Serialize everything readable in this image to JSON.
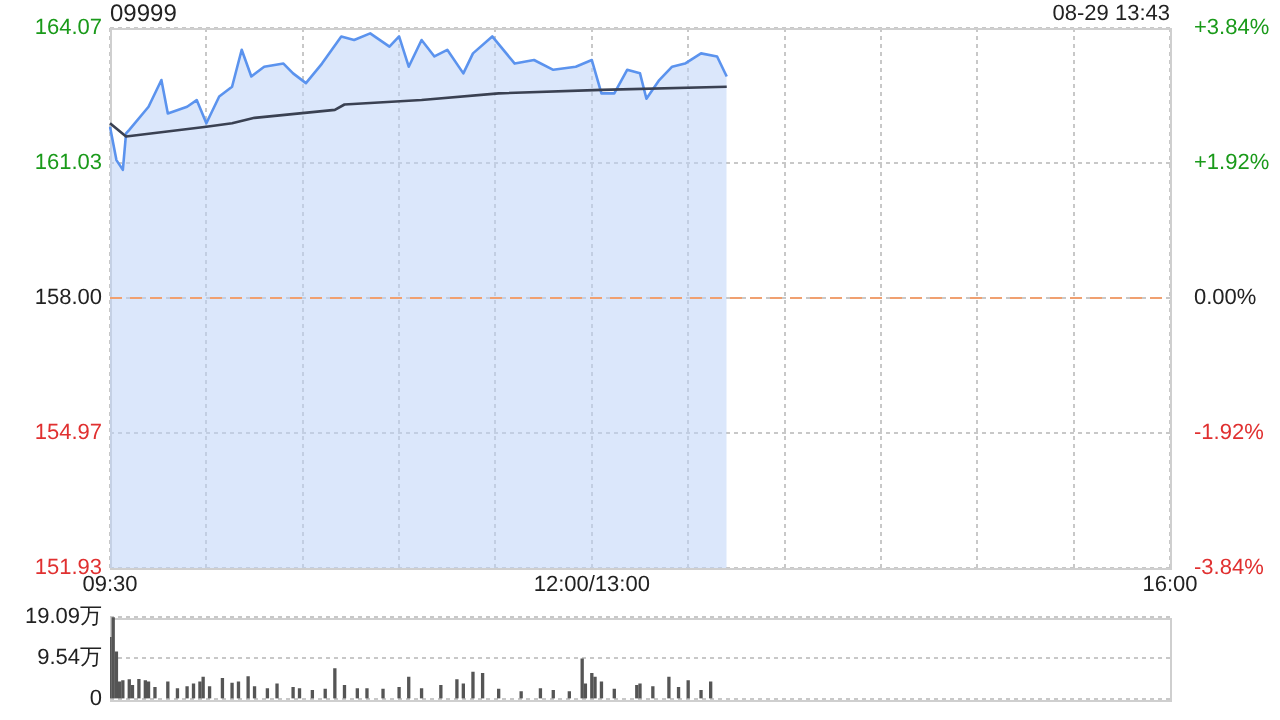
{
  "chart_data": [
    {
      "type": "line",
      "title": "09999",
      "annotations": [
        "08-29 13:43"
      ],
      "categories": [
        "09:30",
        null,
        null,
        null,
        null,
        null,
        null,
        null,
        null,
        null,
        null,
        null,
        null,
        null,
        null,
        null,
        null,
        null,
        null,
        null,
        null,
        null,
        null,
        null,
        null,
        null,
        null,
        null,
        null,
        null,
        null,
        null,
        null,
        null,
        null,
        null,
        null,
        null,
        null,
        null,
        null,
        null,
        null,
        null,
        null,
        null,
        null,
        null,
        null,
        null,
        null,
        null,
        null,
        null,
        null,
        null,
        null,
        null,
        null,
        null,
        null,
        null,
        null,
        null,
        null,
        null,
        null,
        null,
        null,
        null,
        null,
        null,
        null,
        null,
        null,
        null,
        null,
        null,
        null,
        null,
        null,
        null,
        null,
        null,
        null,
        null,
        null,
        null,
        null,
        null,
        null,
        null,
        null,
        null,
        null,
        null,
        null,
        null,
        null,
        null,
        null,
        null,
        null,
        null,
        null,
        null,
        null,
        null,
        null,
        null,
        null,
        null,
        null,
        null,
        null,
        null,
        null,
        null,
        null,
        null,
        null,
        null,
        null,
        null,
        null,
        null,
        null,
        null,
        null,
        null,
        null,
        null,
        null,
        null,
        null,
        null,
        null,
        null,
        null,
        null,
        null,
        null,
        null,
        null,
        null,
        null,
        null,
        null,
        null,
        null,
        "12:00/13:00",
        null,
        null,
        null,
        null,
        null,
        null,
        null,
        null,
        null,
        null,
        null,
        null,
        null,
        null,
        null,
        null,
        null,
        null,
        null,
        null,
        null,
        null,
        null,
        null,
        null,
        null,
        null,
        null,
        null,
        null,
        null,
        null,
        null,
        null,
        null,
        null,
        null,
        null,
        null,
        null,
        null,
        null,
        null,
        null,
        null,
        null,
        null,
        null,
        null,
        null,
        null,
        null,
        null,
        null,
        null,
        null,
        null,
        null,
        null,
        null,
        null,
        null,
        null,
        null,
        null,
        null,
        null,
        null,
        null,
        null,
        null,
        null,
        null,
        null,
        null,
        null,
        null,
        null,
        null,
        null,
        null,
        null,
        null,
        null,
        null,
        null,
        null,
        null,
        null,
        null,
        null,
        null,
        null,
        null,
        null,
        null,
        null,
        null,
        null,
        null,
        null,
        null,
        null,
        null,
        null,
        null,
        null,
        null,
        null,
        null,
        null,
        null,
        null,
        null,
        null,
        null,
        null,
        null,
        null,
        null,
        null,
        null,
        null,
        null,
        null,
        null,
        null,
        null,
        null,
        null,
        null,
        null,
        null,
        null,
        null,
        null,
        null,
        null,
        null,
        null,
        null,
        null,
        null,
        null,
        null,
        null,
        null,
        null,
        null,
        null,
        null,
        null,
        null,
        null,
        null,
        null,
        null,
        null,
        null,
        null,
        null,
        null,
        null,
        null,
        null,
        null,
        null,
        null,
        null,
        null,
        null,
        null,
        null,
        null,
        null,
        null,
        null,
        null,
        null,
        "16:00"
      ],
      "series": [
        {
          "type": "area",
          "color": "#5b93ee",
          "values": [
            161.85,
            null,
            161.1,
            null,
            160.88,
            161.7,
            161.78,
            null,
            null,
            null,
            null,
            null,
            162.3,
            null,
            null,
            null,
            162.9,
            null,
            162.15,
            null,
            null,
            null,
            null,
            null,
            162.3,
            null,
            null,
            162.45,
            null,
            null,
            161.93,
            null,
            null,
            null,
            162.53,
            null,
            null,
            null,
            162.75,
            null,
            null,
            163.58,
            null,
            null,
            162.98,
            null,
            null,
            null,
            163.2,
            null,
            null,
            null,
            null,
            null,
            163.27,
            null,
            null,
            163.05,
            null,
            null,
            null,
            162.83,
            null,
            null,
            null,
            null,
            163.27,
            null,
            null,
            null,
            null,
            null,
            163.88,
            null,
            null,
            null,
            163.8,
            null,
            null,
            null,
            null,
            163.95,
            null,
            null,
            null,
            null,
            null,
            163.65,
            null,
            null,
            163.88,
            null,
            null,
            163.2,
            null,
            null,
            null,
            163.8,
            null,
            null,
            null,
            163.43,
            null,
            null,
            null,
            163.58,
            null,
            null,
            null,
            null,
            163.05,
            null,
            null,
            163.5,
            null,
            null,
            null,
            null,
            null,
            163.88,
            null,
            null,
            null,
            null,
            null,
            null,
            163.27,
            null,
            null,
            null,
            null,
            null,
            163.35,
            null,
            null,
            null,
            null,
            null,
            163.13,
            null,
            null,
            null,
            null,
            null,
            null,
            163.2,
            null,
            null,
            null,
            null,
            163.35,
            null,
            null,
            162.6,
            null,
            null,
            null,
            162.6,
            null,
            null,
            null,
            163.13,
            null,
            null,
            null,
            163.05,
            null,
            162.48,
            null,
            null,
            null,
            162.9,
            null,
            null,
            null,
            163.2,
            null,
            null,
            null,
            163.27,
            null,
            null,
            null,
            null,
            163.5,
            null,
            null,
            null,
            null,
            163.43,
            null,
            null,
            162.98,
            null,
            null,
            null,
            null,
            null,
            null,
            null,
            null,
            null,
            null,
            null,
            null,
            null,
            null,
            null,
            null,
            null,
            null,
            null,
            null,
            null,
            null,
            null,
            null,
            null,
            null,
            null,
            null,
            null,
            null,
            null,
            null,
            null,
            null,
            null,
            null,
            null,
            null,
            null,
            null,
            null,
            null,
            null,
            null,
            null,
            null,
            null,
            null,
            null,
            null,
            null,
            null,
            null,
            null,
            null,
            null,
            null,
            null,
            null,
            null,
            null,
            null,
            null,
            null,
            null,
            null,
            null,
            null,
            null,
            null,
            null,
            null,
            null,
            null,
            null,
            null,
            null,
            null,
            null,
            null,
            null,
            null,
            null,
            null,
            null,
            null,
            null,
            null,
            null,
            null,
            null,
            null,
            null,
            null,
            null,
            null,
            null,
            null,
            null,
            null,
            null,
            null,
            null,
            null,
            null,
            null,
            null,
            null,
            null,
            null,
            null,
            null,
            null,
            null,
            null,
            null,
            null,
            null,
            null,
            null,
            null,
            null,
            null,
            null,
            null,
            null,
            null,
            null,
            null,
            null,
            null,
            null,
            null,
            null,
            null,
            null,
            null,
            null
          ]
        },
        {
          "type": "line",
          "color": "#3a4152",
          "values": [
            161.93,
            null,
            null,
            null,
            null,
            161.63,
            null,
            null,
            null,
            null,
            null,
            null,
            null,
            null,
            null,
            null,
            null,
            null,
            null,
            null,
            null,
            null,
            null,
            null,
            null,
            null,
            null,
            null,
            null,
            null,
            161.85,
            null,
            null,
            null,
            null,
            null,
            null,
            null,
            161.93,
            null,
            null,
            null,
            null,
            null,
            null,
            162.05,
            null,
            null,
            null,
            null,
            null,
            null,
            null,
            null,
            null,
            null,
            null,
            null,
            null,
            null,
            null,
            null,
            null,
            null,
            null,
            null,
            null,
            null,
            null,
            null,
            162.23,
            null,
            null,
            162.35,
            null,
            null,
            null,
            null,
            null,
            null,
            null,
            null,
            null,
            null,
            null,
            null,
            null,
            null,
            null,
            null,
            null,
            null,
            null,
            null,
            null,
            null,
            null,
            162.45,
            null,
            null,
            null,
            null,
            null,
            null,
            null,
            null,
            null,
            null,
            null,
            null,
            null,
            null,
            null,
            null,
            null,
            null,
            null,
            null,
            null,
            null,
            null,
            162.6,
            null,
            null,
            null,
            null,
            null,
            null,
            null,
            null,
            null,
            null,
            null,
            null,
            null,
            null,
            null,
            null,
            null,
            null,
            null,
            null,
            null,
            null,
            null,
            null,
            null,
            null,
            null,
            null,
            null,
            null,
            null,
            162.68,
            null,
            null,
            null,
            null,
            null,
            null,
            null,
            null,
            null,
            null,
            null,
            null,
            null,
            null,
            null,
            null,
            null,
            null,
            null,
            null,
            null,
            null,
            null,
            null,
            null,
            null,
            null,
            null,
            null,
            null,
            null,
            null,
            null,
            null,
            null,
            null,
            null,
            null,
            162.75,
            null,
            null,
            null,
            null,
            null,
            null,
            null,
            null,
            null,
            null,
            null,
            null,
            null,
            null,
            null,
            null,
            null,
            null,
            null,
            null,
            null,
            null,
            null,
            null,
            null,
            null,
            null,
            null,
            null,
            null,
            null,
            null,
            null,
            null,
            null,
            null,
            null,
            null,
            null,
            null,
            null,
            null,
            null,
            null,
            null,
            null,
            null,
            null,
            null,
            null,
            null,
            null,
            null,
            null,
            null,
            null,
            null,
            null,
            null,
            null,
            null,
            null,
            null,
            null,
            null,
            null,
            null,
            null,
            null,
            null,
            null,
            null,
            null,
            null,
            null,
            null,
            null,
            null,
            null,
            null,
            null,
            null,
            null,
            null,
            null,
            null,
            null,
            null,
            null,
            null,
            null,
            null,
            null,
            null,
            null,
            null,
            null,
            null,
            null,
            null,
            null,
            null,
            null,
            null,
            null,
            null,
            null,
            null,
            null,
            null,
            null,
            null,
            null,
            null,
            null,
            null,
            null,
            null,
            null,
            null,
            null,
            null,
            null,
            null,
            null,
            null,
            null,
            null,
            null,
            null,
            null,
            null,
            null,
            null,
            null,
            null,
            null,
            null
          ]
        }
      ],
      "ylim": [
        151.93,
        164.07
      ],
      "yticks": [
        {
          "value": 151.93,
          "label": "151.93"
        },
        {
          "value": 154.97,
          "label": "154.97"
        },
        {
          "value": 158,
          "label": "158.00"
        },
        {
          "value": 161.03,
          "label": "161.03"
        },
        {
          "value": 164.07,
          "label": "164.07"
        }
      ],
      "y2lim": [
        -3.84,
        3.84
      ],
      "y2ticks": [
        {
          "value": -3.84,
          "label": "-3.84%"
        },
        {
          "value": -1.92,
          "label": "-1.92%"
        },
        {
          "value": 0,
          "label": "0.00%"
        },
        {
          "value": 1.92,
          "label": "+1.92%"
        },
        {
          "value": 3.84,
          "label": "+3.84%"
        }
      ],
      "ref_lines": [
        {
          "axis": "y",
          "value": 158,
          "color": "#f0a070",
          "line_style": "dashed"
        }
      ],
      "grid": true,
      "marker": "none"
    },
    {
      "type": "bar",
      "color": "#555555",
      "categories": [
        null,
        null,
        null,
        null,
        null,
        null,
        null,
        null,
        null,
        null,
        null,
        null,
        null,
        null,
        null,
        null,
        null,
        null,
        null,
        null,
        null,
        null,
        null,
        null,
        null,
        null,
        null,
        null,
        null,
        null,
        null,
        null,
        null,
        null,
        null,
        null,
        null,
        null,
        null,
        null,
        null,
        null,
        null,
        null,
        null,
        null,
        null,
        null,
        null,
        null,
        null,
        null,
        null,
        null,
        null,
        null,
        null,
        null,
        null,
        null,
        null,
        null,
        null,
        null,
        null,
        null,
        null,
        null,
        null,
        null,
        null,
        null,
        null,
        null,
        null,
        null,
        null,
        null,
        null,
        null,
        null,
        null,
        null,
        null,
        null,
        null,
        null,
        null,
        null,
        null,
        null,
        null,
        null,
        null,
        null,
        null,
        null,
        null,
        null,
        null,
        null,
        null,
        null,
        null,
        null,
        null,
        null,
        null,
        null,
        null,
        null,
        null,
        null,
        null,
        null,
        null,
        null,
        null,
        null,
        null,
        null,
        null,
        null,
        null,
        null,
        null,
        null,
        null,
        null,
        null,
        null,
        null,
        null,
        null,
        null,
        null,
        null,
        null,
        null,
        null,
        null,
        null,
        null,
        null,
        null,
        null,
        null,
        null,
        null,
        null,
        null,
        null,
        null,
        null,
        null,
        null,
        null,
        null,
        null,
        null,
        null,
        null,
        null,
        null,
        null,
        null,
        null,
        null,
        null,
        null,
        null,
        null,
        null,
        null,
        null,
        null,
        null,
        null,
        null,
        null,
        null,
        null,
        null,
        null,
        null,
        null,
        null,
        null,
        null,
        null,
        null,
        null,
        null,
        null,
        null,
        null,
        null,
        null,
        null,
        null,
        null,
        null,
        null,
        null,
        null,
        null,
        null,
        null,
        null,
        null,
        null,
        null,
        null,
        null,
        null,
        null,
        null,
        null,
        null,
        null,
        null,
        null,
        null,
        null,
        null,
        null,
        null,
        null,
        null,
        null,
        null,
        null,
        null,
        null,
        null,
        null,
        null,
        null,
        null,
        null,
        null,
        null,
        null,
        null,
        null,
        null,
        null,
        null,
        null,
        null,
        null,
        null,
        null,
        null,
        null,
        null,
        null,
        null,
        null,
        null,
        null,
        null,
        null,
        null,
        null,
        null,
        null,
        null,
        null,
        null,
        null,
        null,
        null,
        null,
        null,
        null,
        null,
        null,
        null,
        null,
        null,
        null,
        null,
        null,
        null,
        null,
        null,
        null,
        null,
        null,
        null,
        null,
        null,
        null,
        null,
        null,
        null,
        null,
        null,
        null,
        null,
        null,
        null,
        null,
        null,
        null,
        null,
        null,
        null,
        null,
        null,
        null,
        null,
        null,
        null,
        null,
        null,
        null,
        null,
        null,
        null,
        null,
        null,
        null,
        null,
        null,
        null,
        null,
        null,
        null,
        null
      ],
      "values": [
        14.3,
        19.0,
        10.9,
        3.9,
        4.2,
        null,
        4.4,
        3.1,
        null,
        4.5,
        null,
        4.2,
        3.9,
        null,
        2.6,
        null,
        null,
        null,
        3.9,
        null,
        null,
        2.3,
        null,
        null,
        2.8,
        null,
        3.4,
        null,
        3.9,
        5.0,
        null,
        2.8,
        null,
        null,
        null,
        4.7,
        null,
        null,
        3.6,
        null,
        3.9,
        null,
        null,
        5.1,
        null,
        2.8,
        null,
        null,
        null,
        2.3,
        null,
        null,
        3.4,
        null,
        null,
        null,
        null,
        2.6,
        null,
        2.3,
        null,
        null,
        null,
        1.9,
        null,
        null,
        null,
        2.2,
        null,
        null,
        7.0,
        null,
        null,
        3.1,
        null,
        null,
        null,
        2.3,
        null,
        null,
        2.3,
        null,
        null,
        null,
        null,
        2.2,
        null,
        null,
        null,
        null,
        2.6,
        null,
        null,
        5.0,
        null,
        null,
        null,
        2.3,
        null,
        null,
        null,
        null,
        null,
        3.1,
        null,
        null,
        null,
        null,
        4.4,
        null,
        3.4,
        null,
        null,
        6.2,
        null,
        null,
        5.9,
        null,
        null,
        null,
        null,
        2.2,
        null,
        null,
        null,
        null,
        null,
        null,
        1.6,
        null,
        null,
        null,
        null,
        null,
        2.3,
        null,
        null,
        null,
        1.9,
        null,
        null,
        null,
        null,
        1.6,
        null,
        null,
        null,
        9.3,
        3.4,
        null,
        5.9,
        5.0,
        null,
        3.9,
        null,
        null,
        null,
        2.2,
        null,
        null,
        null,
        null,
        null,
        null,
        3.1,
        3.4,
        null,
        null,
        null,
        2.8,
        null,
        null,
        null,
        null,
        5.0,
        null,
        null,
        2.6,
        null,
        null,
        4.2,
        null,
        null,
        null,
        1.9,
        null,
        null,
        3.9,
        null,
        null,
        null,
        null,
        null,
        null,
        null,
        null,
        null,
        null,
        null,
        null,
        null,
        null,
        null,
        null,
        null,
        null,
        null,
        null,
        null,
        null,
        null,
        null,
        null,
        null,
        null,
        null,
        null,
        null,
        null,
        null,
        null,
        null,
        null,
        null,
        null,
        null,
        null,
        null,
        null,
        null,
        null,
        null,
        null,
        null,
        null,
        null,
        null,
        null,
        null,
        null,
        null,
        null,
        null,
        null,
        null,
        null,
        null,
        null,
        null,
        null,
        null,
        null,
        null,
        null,
        null,
        null,
        null,
        null,
        null,
        null,
        null,
        null,
        null,
        null,
        null,
        null,
        null,
        null,
        null,
        null,
        null,
        null,
        null,
        null,
        null,
        null,
        null,
        null,
        null,
        null,
        null,
        null,
        null,
        null,
        null,
        null,
        null,
        null,
        null,
        null,
        null,
        null,
        null,
        null,
        null,
        null,
        null,
        null,
        null,
        null,
        null,
        null,
        null,
        null,
        null,
        null,
        null,
        null,
        null,
        null,
        null,
        null,
        null,
        null,
        null,
        null,
        null,
        null,
        null,
        null,
        null,
        null,
        null,
        null,
        null,
        null,
        null,
        null,
        null,
        null,
        null
      ],
      "ylim": [
        0,
        19.09
      ],
      "yticks": [
        0,
        {
          "value": 9.54,
          "label": "9.54万"
        },
        {
          "value": 19.09,
          "label": "19.09万"
        }
      ],
      "grid": "y",
      "tick_labels": "y"
    }
  ]
}
